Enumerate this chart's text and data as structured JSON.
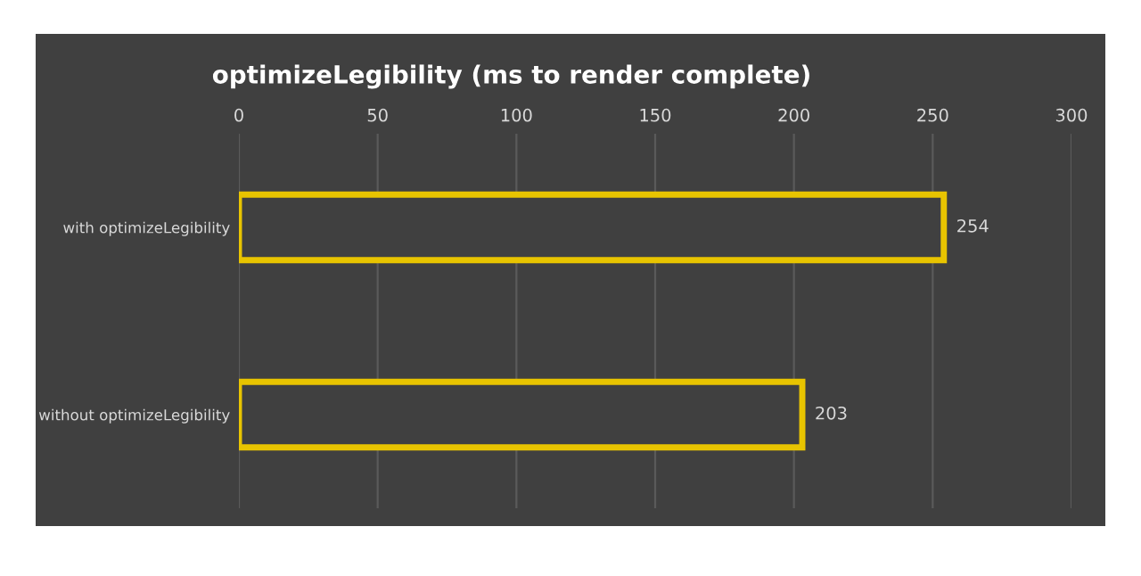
{
  "chart_data": {
    "type": "bar",
    "orientation": "horizontal",
    "title": "optimizeLegibility (ms to render complete)",
    "categories": [
      "with optimizeLegibility",
      "without optimizeLegibility"
    ],
    "values": [
      254,
      203
    ],
    "color": "#e8c400",
    "xlim": [
      0,
      300
    ],
    "xticks": [
      0,
      50,
      100,
      150,
      200,
      250,
      300
    ],
    "grid": "x",
    "data_labels": true
  }
}
